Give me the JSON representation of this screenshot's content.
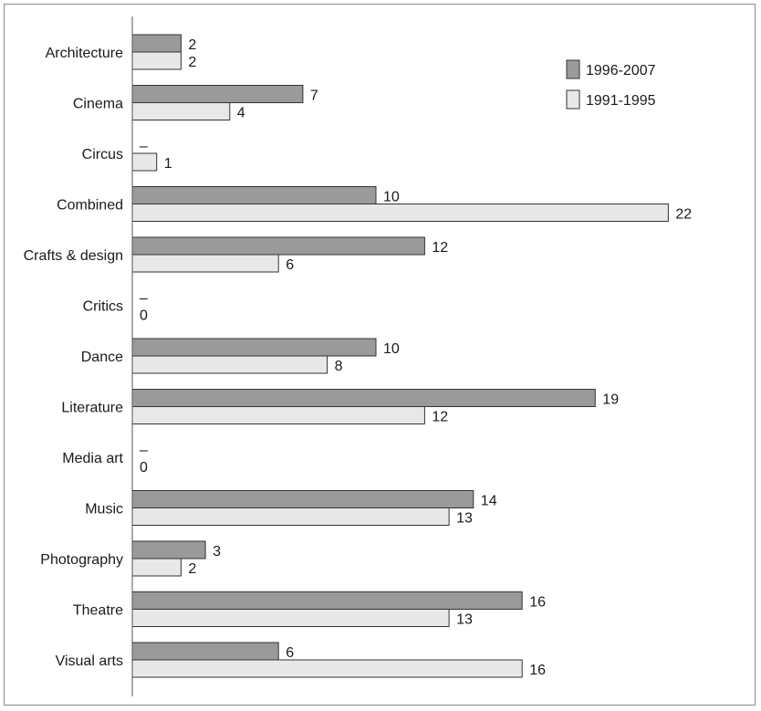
{
  "chart_data": {
    "type": "bar",
    "orientation": "horizontal",
    "categories": [
      "Architecture",
      "Cinema",
      "Circus",
      "Combined",
      "Crafts & design",
      "Critics",
      "Dance",
      "Literature",
      "Media art",
      "Music",
      "Photography",
      "Theatre",
      "Visual arts"
    ],
    "series": [
      {
        "name": "1996-2007",
        "color": "#9a9a9a",
        "values": [
          2,
          7,
          null,
          10,
          12,
          null,
          10,
          19,
          null,
          14,
          3,
          16,
          6
        ],
        "labels": [
          "2",
          "7",
          "–",
          "10",
          "12",
          "–",
          "10",
          "19",
          "–",
          "14",
          "3",
          "16",
          "6"
        ]
      },
      {
        "name": "1991-1995",
        "color": "#e8e8e8",
        "values": [
          2,
          4,
          1,
          22,
          6,
          0,
          8,
          12,
          0,
          13,
          2,
          13,
          16
        ],
        "labels": [
          "2",
          "4",
          "1",
          "22",
          "6",
          "0",
          "8",
          "12",
          "0",
          "13",
          "2",
          "13",
          "16"
        ]
      }
    ],
    "xlim": [
      0,
      24
    ],
    "legend_position": "top-right",
    "grid": false
  }
}
